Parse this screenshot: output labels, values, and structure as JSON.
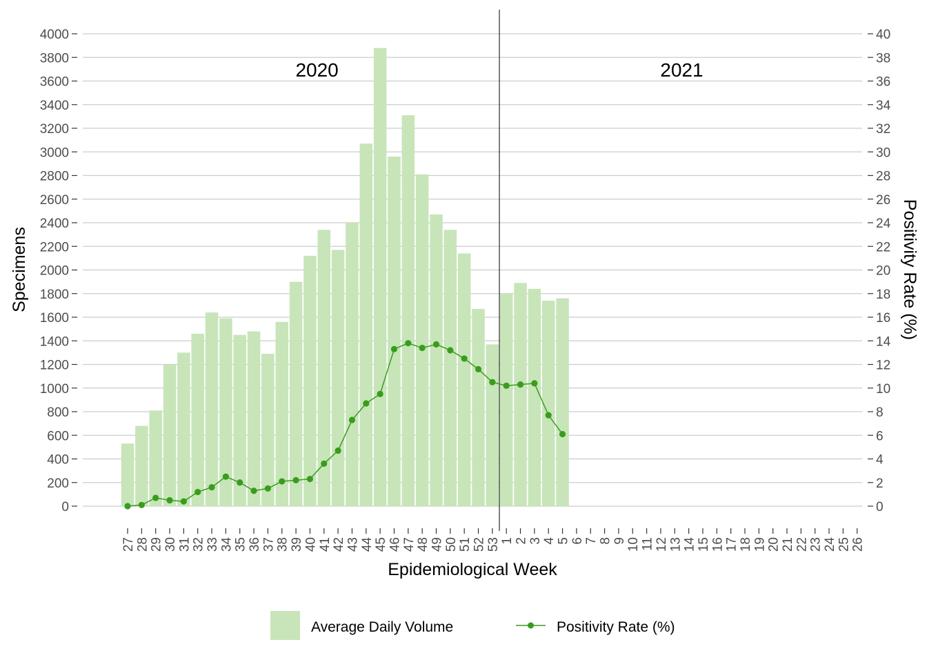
{
  "chart_data": {
    "type": "bar",
    "xlabel": "Epidemiological Week",
    "ylabel": "Specimens",
    "y2label": "Positivity Rate (%)",
    "ylim": [
      0,
      4000
    ],
    "y2lim": [
      0,
      40
    ],
    "yticks": [
      0,
      200,
      400,
      600,
      800,
      1000,
      1200,
      1400,
      1600,
      1800,
      2000,
      2200,
      2400,
      2600,
      2800,
      3000,
      3200,
      3400,
      3600,
      3800,
      4000
    ],
    "y2ticks": [
      0,
      2,
      4,
      6,
      8,
      10,
      12,
      14,
      16,
      18,
      20,
      22,
      24,
      26,
      28,
      30,
      32,
      34,
      36,
      38,
      40
    ],
    "grid": true,
    "legend_position": "bottom",
    "categories": [
      "27",
      "28",
      "29",
      "30",
      "31",
      "32",
      "33",
      "34",
      "35",
      "36",
      "37",
      "38",
      "39",
      "40",
      "41",
      "42",
      "43",
      "44",
      "45",
      "46",
      "47",
      "48",
      "49",
      "50",
      "51",
      "52",
      "53",
      "1",
      "2",
      "3",
      "4",
      "5",
      "6",
      "7",
      "8",
      "9",
      "10",
      "11",
      "12",
      "13",
      "14",
      "15",
      "16",
      "17",
      "18",
      "19",
      "20",
      "21",
      "22",
      "23",
      "24",
      "25",
      "26"
    ],
    "year_labels": [
      {
        "label": "2020",
        "after_category_index": 13
      },
      {
        "label": "2021",
        "after_category_index": 39
      }
    ],
    "divider_after_category": "53",
    "series": [
      {
        "name": "Average Daily Volume",
        "type": "bar",
        "axis": "left",
        "color": "#c7e5b9",
        "values": [
          530,
          680,
          810,
          1200,
          1300,
          1460,
          1640,
          1590,
          1450,
          1480,
          1290,
          1560,
          1900,
          2120,
          2340,
          2170,
          2400,
          3070,
          3880,
          2960,
          3310,
          2810,
          2470,
          2340,
          2140,
          1670,
          1370,
          1800,
          1890,
          1840,
          1740,
          1760,
          null,
          null,
          null,
          null,
          null,
          null,
          null,
          null,
          null,
          null,
          null,
          null,
          null,
          null,
          null,
          null,
          null,
          null,
          null,
          null,
          null
        ]
      },
      {
        "name": "Positivity Rate (%)",
        "type": "line",
        "axis": "right",
        "color": "#3a9c1c",
        "values": [
          0.0,
          0.1,
          0.7,
          0.5,
          0.4,
          1.2,
          1.6,
          2.5,
          2.0,
          1.3,
          1.5,
          2.1,
          2.2,
          2.3,
          3.6,
          4.7,
          7.3,
          8.7,
          9.5,
          13.3,
          13.8,
          13.4,
          13.7,
          13.2,
          12.5,
          11.6,
          10.5,
          10.2,
          10.3,
          10.4,
          7.7,
          6.1,
          null,
          null,
          null,
          null,
          null,
          null,
          null,
          null,
          null,
          null,
          null,
          null,
          null,
          null,
          null,
          null,
          null,
          null,
          null,
          null,
          null
        ]
      }
    ]
  }
}
